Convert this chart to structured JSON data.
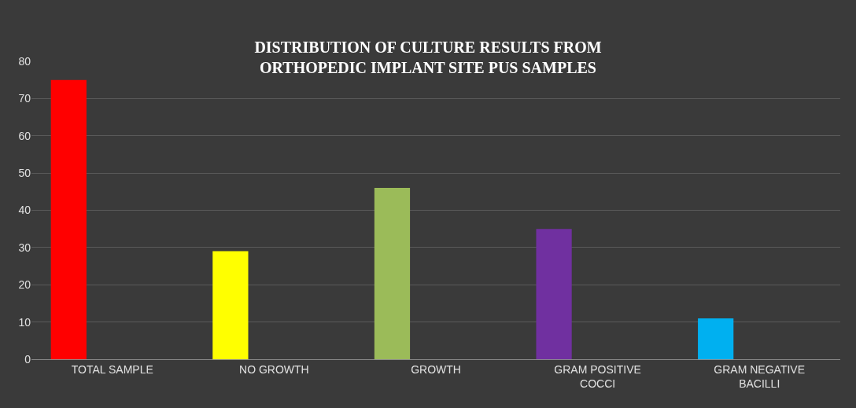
{
  "chart_data": {
    "type": "bar",
    "title": "DISTRIBUTION OF CULTURE RESULTS FROM ORTHOPEDIC IMPLANT SITE PUS SAMPLES",
    "categories": [
      "TOTAL SAMPLE",
      "NO GROWTH",
      "GROWTH",
      "GRAM POSITIVE COCCI",
      "GRAM NEGATIVE BACILLI"
    ],
    "values": [
      75,
      29,
      46,
      35,
      11
    ],
    "colors": [
      "#ff0000",
      "#ffff00",
      "#9bbb59",
      "#7030a0",
      "#00b0f0"
    ],
    "ylim": [
      0,
      80
    ],
    "yticks": [
      0,
      10,
      20,
      30,
      40,
      50,
      60,
      70,
      80
    ],
    "grid": "y"
  }
}
